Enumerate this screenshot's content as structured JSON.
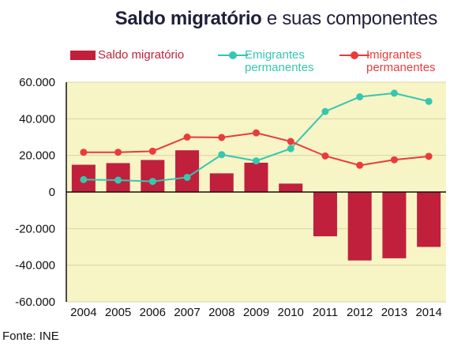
{
  "title": {
    "bold": "Saldo migratório",
    "rest": " e suas componentes"
  },
  "legend": [
    {
      "label": "Saldo migratório"
    },
    {
      "label": "Emigrantes\npermanentes"
    },
    {
      "label": "Imigrantes\npermanentes"
    }
  ],
  "colors": {
    "bar": "#c0203c",
    "emigrantes": "#35c7b0",
    "imigrantes": "#ea3b3b",
    "plot_bg": "#f7f4c6",
    "title": "#1f1f3a"
  },
  "source": "Fonte: INE",
  "chart_data": {
    "type": "bar",
    "title": "Saldo migratório e suas componentes",
    "xlabel": "",
    "ylabel": "",
    "ylim": [
      -60000,
      60000
    ],
    "yticks": [
      -60000,
      -40000,
      -20000,
      0,
      20000,
      40000,
      60000
    ],
    "ytick_labels": [
      "-60.000",
      "-40.000",
      "-20.000",
      "0",
      "20.000",
      "40.000",
      "60.000"
    ],
    "grid": "horizontal",
    "legend_position": "top",
    "categories": [
      "2004",
      "2005",
      "2006",
      "2007",
      "2008",
      "2009",
      "2010",
      "2011",
      "2012",
      "2013",
      "2014"
    ],
    "series": [
      {
        "name": "Saldo migratório",
        "type": "bar",
        "values": [
          14900,
          15800,
          17500,
          22800,
          10200,
          16000,
          4600,
          -24200,
          -37400,
          -36200,
          -30000
        ]
      },
      {
        "name": "Emigrantes permanentes",
        "type": "line",
        "values": [
          6800,
          6500,
          5800,
          8000,
          20400,
          17000,
          23700,
          44000,
          52000,
          54000,
          49500
        ]
      },
      {
        "name": "Imigrantes permanentes",
        "type": "line",
        "values": [
          21700,
          21700,
          22300,
          30000,
          29800,
          32300,
          27600,
          19700,
          14600,
          17600,
          19500
        ]
      }
    ]
  }
}
